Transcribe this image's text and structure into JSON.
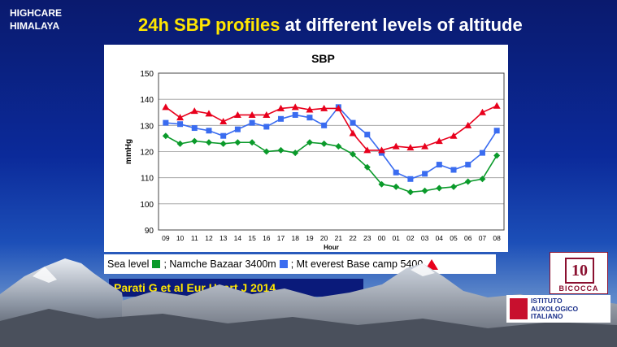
{
  "brand": {
    "line1": "HIGHCARE",
    "line2": "HIMALAYA"
  },
  "slide_title": {
    "highlight": "24h SBP profiles",
    "rest": " at different levels of altitude"
  },
  "legend": {
    "sea": "Sea level",
    "namche": "; Namche Bazaar 3400m",
    "everest": "; Mt everest Base camp 5400"
  },
  "citation": "Parati G et al  Eur Heart J 2014",
  "logos": {
    "university_number": "10",
    "university_name": "BICOCCA",
    "institute_line1": "ISTITUTO",
    "institute_line2": "AUXOLOGICO",
    "institute_line3": "ITALIANO"
  },
  "colors": {
    "sea": "#0a9a2a",
    "namche": "#3a6cf0",
    "everest": "#e8001c"
  },
  "chart_data": {
    "type": "line",
    "title": "SBP",
    "xlabel": "Hour",
    "ylabel": "mmHg",
    "ylim": [
      90,
      150
    ],
    "yticks": [
      90,
      100,
      110,
      120,
      130,
      140,
      150
    ],
    "grid": true,
    "categories": [
      "09",
      "10",
      "11",
      "12",
      "13",
      "14",
      "15",
      "16",
      "17",
      "18",
      "19",
      "20",
      "21",
      "22",
      "23",
      "00",
      "01",
      "02",
      "03",
      "04",
      "05",
      "06",
      "07",
      "08"
    ],
    "series": [
      {
        "name": "Sea level",
        "marker": "diamond",
        "values": [
          126,
          123,
          124,
          123.5,
          123,
          123.5,
          123.5,
          120,
          120.5,
          119.5,
          123.5,
          123,
          122,
          119,
          114,
          107.5,
          106.5,
          104.5,
          105,
          106,
          106.5,
          108.5,
          109.5,
          118.5
        ]
      },
      {
        "name": "Namche Bazaar 3400m",
        "marker": "square",
        "values": [
          131,
          130.5,
          129,
          128,
          126,
          128.5,
          131,
          129.5,
          132.5,
          134,
          133,
          130,
          137,
          131,
          126.5,
          119.5,
          112,
          109.5,
          111.5,
          115,
          113,
          115,
          119.5,
          128
        ]
      },
      {
        "name": "Mt everest Base camp 5400",
        "marker": "triangle",
        "values": [
          137,
          133,
          135.5,
          134.5,
          131.5,
          134,
          134,
          134,
          136.5,
          137,
          136,
          136.5,
          136.5,
          127,
          120.5,
          120.5,
          122,
          121.5,
          122,
          124,
          126,
          130,
          135,
          137.5
        ]
      }
    ]
  }
}
